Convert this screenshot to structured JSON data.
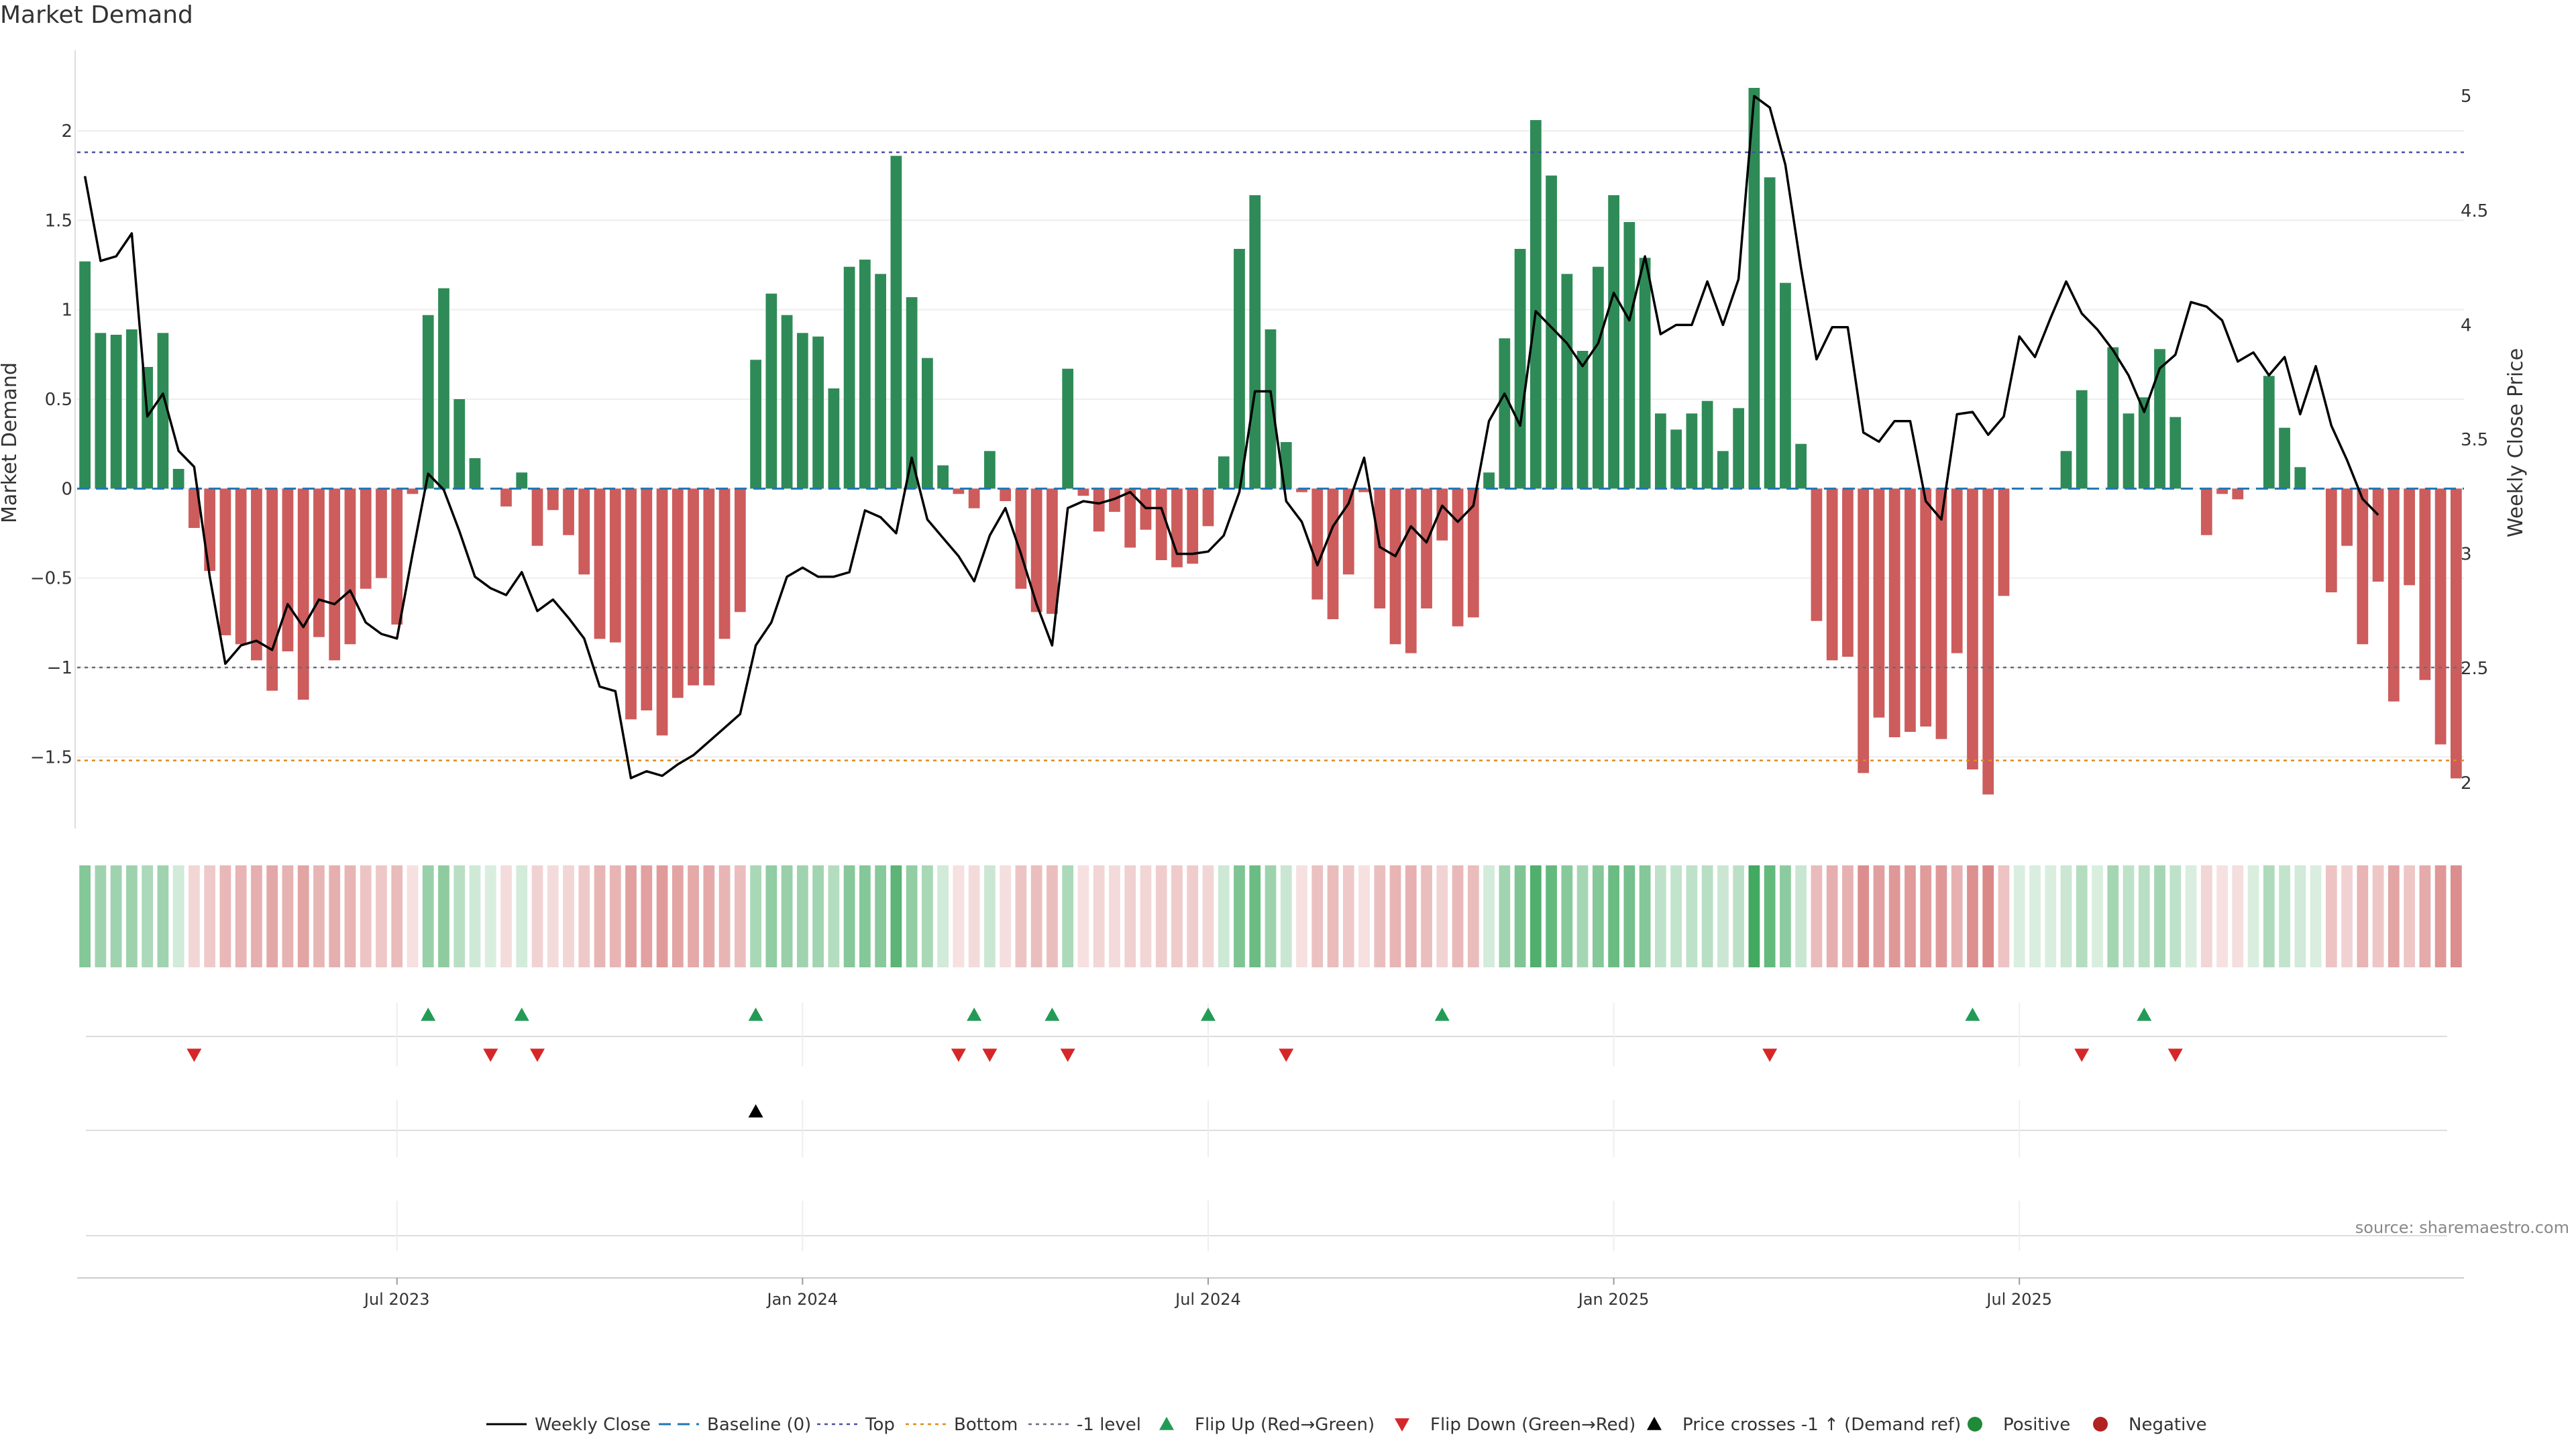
{
  "chart_data": {
    "type": "bar",
    "title": "Market Demand",
    "ylabel": "Market Demand",
    "y2label": "Weekly Close Price",
    "ylim": [
      -1.9,
      2.45
    ],
    "y2lim": [
      1.8,
      5.2
    ],
    "yticks": [
      "2",
      "1.5",
      "1",
      "0.5",
      "0",
      "−0.5",
      "−1",
      "−1.5"
    ],
    "y2ticks": [
      "5",
      "4.5",
      "4",
      "3.5",
      "3",
      "2.5",
      "2"
    ],
    "xticks": [
      {
        "label": "Jul 2023",
        "index": 20.5
      },
      {
        "label": "Jan 2024",
        "index": 46.5
      },
      {
        "label": "Jul 2024",
        "index": 72.5
      },
      {
        "label": "Jan 2025",
        "index": 98.5
      },
      {
        "label": "Jul 2025",
        "index": 124.5
      }
    ],
    "levels": {
      "top": 1.88,
      "bottom": -1.52,
      "minus_one": -1.0,
      "baseline": 0
    },
    "series": [
      {
        "name": "Market Demand",
        "values": [
          1.27,
          0.87,
          0.86,
          0.89,
          0.68,
          0.87,
          0.11,
          -0.22,
          -0.46,
          -0.82,
          -0.87,
          -0.96,
          -1.13,
          -0.91,
          -1.18,
          -0.83,
          -0.96,
          -0.87,
          -0.56,
          -0.5,
          -0.76,
          -0.03,
          0.97,
          1.12,
          0.5,
          0.17,
          0.0,
          -0.1,
          0.09,
          -0.32,
          -0.12,
          -0.26,
          -0.48,
          -0.84,
          -0.86,
          -1.29,
          -1.24,
          -1.38,
          -1.17,
          -1.1,
          -1.1,
          -0.84,
          -0.69,
          0.72,
          1.09,
          0.97,
          0.87,
          0.85,
          0.56,
          1.24,
          1.28,
          1.2,
          1.86,
          1.07,
          0.73,
          0.13,
          -0.03,
          -0.11,
          0.21,
          -0.07,
          -0.56,
          -0.69,
          -0.7,
          0.67,
          -0.04,
          -0.24,
          -0.13,
          -0.33,
          -0.23,
          -0.4,
          -0.44,
          -0.42,
          -0.21,
          0.18,
          1.34,
          1.64,
          0.89,
          0.26,
          -0.02,
          -0.62,
          -0.73,
          -0.48,
          -0.02,
          -0.67,
          -0.87,
          -0.92,
          -0.67,
          -0.29,
          -0.77,
          -0.72,
          0.09,
          0.84,
          1.34,
          2.06,
          1.75,
          1.2,
          0.77,
          1.24,
          1.64,
          1.49,
          1.29,
          0.42,
          0.33,
          0.42,
          0.49,
          0.21,
          0.45,
          2.24,
          1.74,
          1.15,
          0.25,
          -0.74,
          -0.96,
          -0.94,
          -1.59,
          -1.28,
          -1.39,
          -1.36,
          -1.33,
          -1.4,
          -0.92,
          -1.57,
          -1.71,
          -0.6,
          0.0,
          0.0,
          0.0,
          0.21,
          0.55,
          0.0,
          0.79,
          0.42,
          0.51,
          0.78,
          0.4,
          0.0,
          -0.26,
          -0.03,
          -0.06,
          0.0,
          0.63,
          0.34,
          0.12,
          0.0,
          -0.58,
          -0.32,
          -0.87,
          -0.52,
          -1.19,
          -0.54,
          -1.07,
          -1.43,
          -1.62
        ]
      },
      {
        "name": "Weekly Close",
        "values": [
          4.65,
          4.28,
          4.3,
          4.4,
          3.6,
          3.7,
          3.45,
          3.38,
          2.9,
          2.52,
          2.6,
          2.62,
          2.58,
          2.78,
          2.68,
          2.8,
          2.78,
          2.84,
          2.7,
          2.65,
          2.63,
          3.0,
          3.35,
          3.28,
          3.1,
          2.9,
          2.85,
          2.82,
          2.92,
          2.75,
          2.8,
          2.72,
          2.63,
          2.42,
          2.4,
          2.02,
          2.05,
          2.03,
          2.08,
          2.12,
          2.18,
          2.24,
          2.3,
          2.6,
          2.7,
          2.9,
          2.94,
          2.9,
          2.9,
          2.92,
          3.19,
          3.16,
          3.09,
          3.42,
          3.15,
          3.07,
          2.99,
          2.88,
          3.08,
          3.2,
          3.0,
          2.78,
          2.6,
          3.2,
          3.23,
          3.22,
          3.24,
          3.27,
          3.2,
          3.2,
          3.0,
          3.0,
          3.01,
          3.08,
          3.27,
          3.71,
          3.71,
          3.23,
          3.14,
          2.95,
          3.12,
          3.22,
          3.42,
          3.03,
          2.99,
          3.12,
          3.05,
          3.21,
          3.14,
          3.21,
          3.58,
          3.7,
          3.56,
          4.06,
          3.99,
          3.92,
          3.82,
          3.92,
          4.14,
          4.02,
          4.3,
          3.96,
          4.0,
          4.0,
          4.19,
          4.0,
          4.2,
          5.0,
          4.95,
          4.7,
          4.25,
          3.85,
          3.99,
          3.99,
          3.53,
          3.49,
          3.58,
          3.58,
          3.23,
          3.15,
          3.61,
          3.62,
          3.52,
          3.6,
          3.95,
          3.86,
          4.03,
          4.19,
          4.05,
          3.98,
          3.89,
          3.78,
          3.62,
          3.81,
          3.87,
          4.1,
          4.08,
          4.02,
          3.84,
          3.88,
          3.78,
          3.86,
          3.61,
          3.82,
          3.56,
          3.41,
          3.24,
          3.17
        ]
      }
    ],
    "flip_up_indices": [
      22,
      28,
      43,
      57,
      62,
      72,
      87,
      121,
      132
    ],
    "flip_down_indices": [
      7,
      26,
      29,
      56,
      58,
      63,
      77,
      108,
      128,
      134
    ],
    "price_cross_indices": [
      43
    ],
    "legend": [
      "Weekly Close",
      "Baseline (0)",
      "Top",
      "Bottom",
      "-1 level",
      "Flip Up (Red→Green)",
      "Flip Down (Green→Red)",
      "Price crosses -1 ↑ (Demand ref)",
      "Positive",
      "Negative"
    ],
    "legend_placement": "bottom-center",
    "colors": {
      "positive": "#2e8b57",
      "negative": "#cd5c5c",
      "line": "#000000",
      "baseline": "#1f77b4",
      "top": "#4b4fa8",
      "bottom": "#e08a1e",
      "minus_one": "#6b6b7b",
      "flip_up": "#239b56",
      "flip_down": "#d62728",
      "cross": "#000000",
      "legend_positive": "#1f8a38",
      "legend_negative": "#b22222"
    }
  },
  "source_text": "source: sharemaestro.com"
}
